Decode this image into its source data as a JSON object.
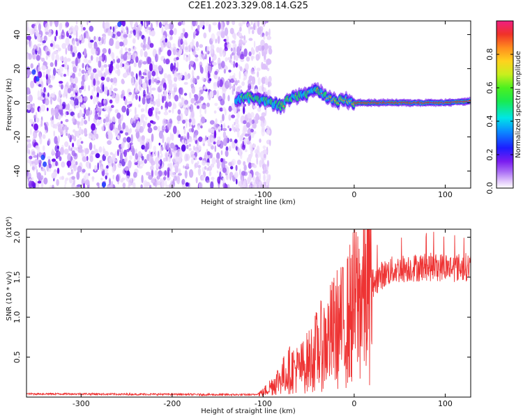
{
  "title": "C2E1.2023.329.08.14.G25",
  "chart_data": [
    {
      "type": "heatmap",
      "xlabel": "Height of straight line (km)",
      "ylabel": "Frequency (Hz)",
      "xlim": [
        -360,
        128
      ],
      "ylim": [
        -50,
        48
      ],
      "x_ticks": [
        -300,
        -200,
        -100,
        0,
        100
      ],
      "y_ticks": [
        -40,
        -20,
        0,
        20,
        40
      ],
      "x_tick_labels": [
        "-300",
        "-200",
        "-100",
        "0",
        "100"
      ],
      "y_tick_labels": [
        "-40",
        "-20",
        "0",
        "20",
        "40"
      ],
      "noise_region_x": [
        -360,
        -100
      ],
      "signal_line": {
        "x": [
          -130,
          -115,
          -100,
          -90,
          -80,
          -70,
          -60,
          -50,
          -40,
          -30,
          -20,
          -10,
          0,
          20,
          40,
          60,
          80,
          100,
          128
        ],
        "freq": [
          2,
          3,
          1,
          0,
          -2,
          3,
          4,
          5,
          8,
          3,
          1,
          2,
          0,
          0,
          0,
          0,
          0,
          0,
          1
        ]
      },
      "colorbar": {
        "label": "Normalized spectral amplitude",
        "range": [
          0,
          1
        ],
        "ticks": [
          0.0,
          0.2,
          0.4,
          0.6,
          0.8
        ],
        "tick_labels": [
          "0.0",
          "0.2",
          "0.4",
          "0.6",
          "0.8"
        ]
      }
    },
    {
      "type": "line",
      "xlabel": "Height of straight line (km)",
      "ylabel": "SNR (10 * v/v)",
      "scale_note": "(x10⁴)",
      "xlim": [
        -360,
        128
      ],
      "ylim": [
        0,
        2.1
      ],
      "x_ticks": [
        -300,
        -200,
        -100,
        0,
        100
      ],
      "y_ticks": [
        0.5,
        1.0,
        1.5,
        2.0
      ],
      "x_tick_labels": [
        "-300",
        "-200",
        "-100",
        "0",
        "100"
      ],
      "y_tick_labels": [
        "0.5",
        "1.0",
        "1.5",
        "2.0"
      ],
      "series": [
        {
          "color": "#ee3333",
          "x": [
            -360,
            -300,
            -250,
            -200,
            -150,
            -110,
            -100,
            -90,
            -80,
            -70,
            -60,
            -50,
            -40,
            -30,
            -20,
            -10,
            0,
            10,
            20,
            30,
            40,
            50,
            60,
            70,
            80,
            90,
            100,
            110,
            128
          ],
          "y": [
            0.04,
            0.04,
            0.035,
            0.035,
            0.03,
            0.03,
            0.06,
            0.15,
            0.25,
            0.35,
            0.35,
            0.45,
            0.6,
            0.7,
            0.85,
            0.9,
            1.15,
            1.3,
            1.42,
            1.52,
            1.58,
            1.6,
            1.62,
            1.62,
            1.63,
            1.62,
            1.63,
            1.62,
            1.63
          ]
        }
      ]
    }
  ]
}
